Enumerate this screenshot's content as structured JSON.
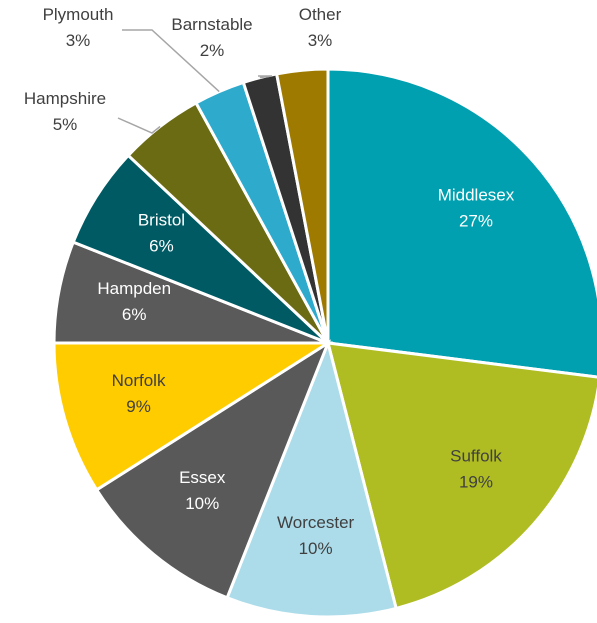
{
  "chart_data": {
    "type": "pie",
    "categories": [
      "Middlesex",
      "Suffolk",
      "Worcester",
      "Essex",
      "Norfolk",
      "Hampden",
      "Bristol",
      "Hampshire",
      "Plymouth",
      "Barnstable",
      "Other"
    ],
    "values": [
      27,
      19,
      10,
      10,
      9,
      6,
      6,
      5,
      3,
      2,
      3
    ],
    "value_labels": [
      "27%",
      "19%",
      "10%",
      "10%",
      "9%",
      "6%",
      "6%",
      "5%",
      "3%",
      "2%",
      "3%"
    ],
    "colors": [
      "#00a0b0",
      "#afbd22",
      "#acdcea",
      "#595959",
      "#ffcc00",
      "#5a5a5a",
      "#005a64",
      "#6a6b12",
      "#2eaacd",
      "#333333",
      "#9e7b00"
    ]
  }
}
